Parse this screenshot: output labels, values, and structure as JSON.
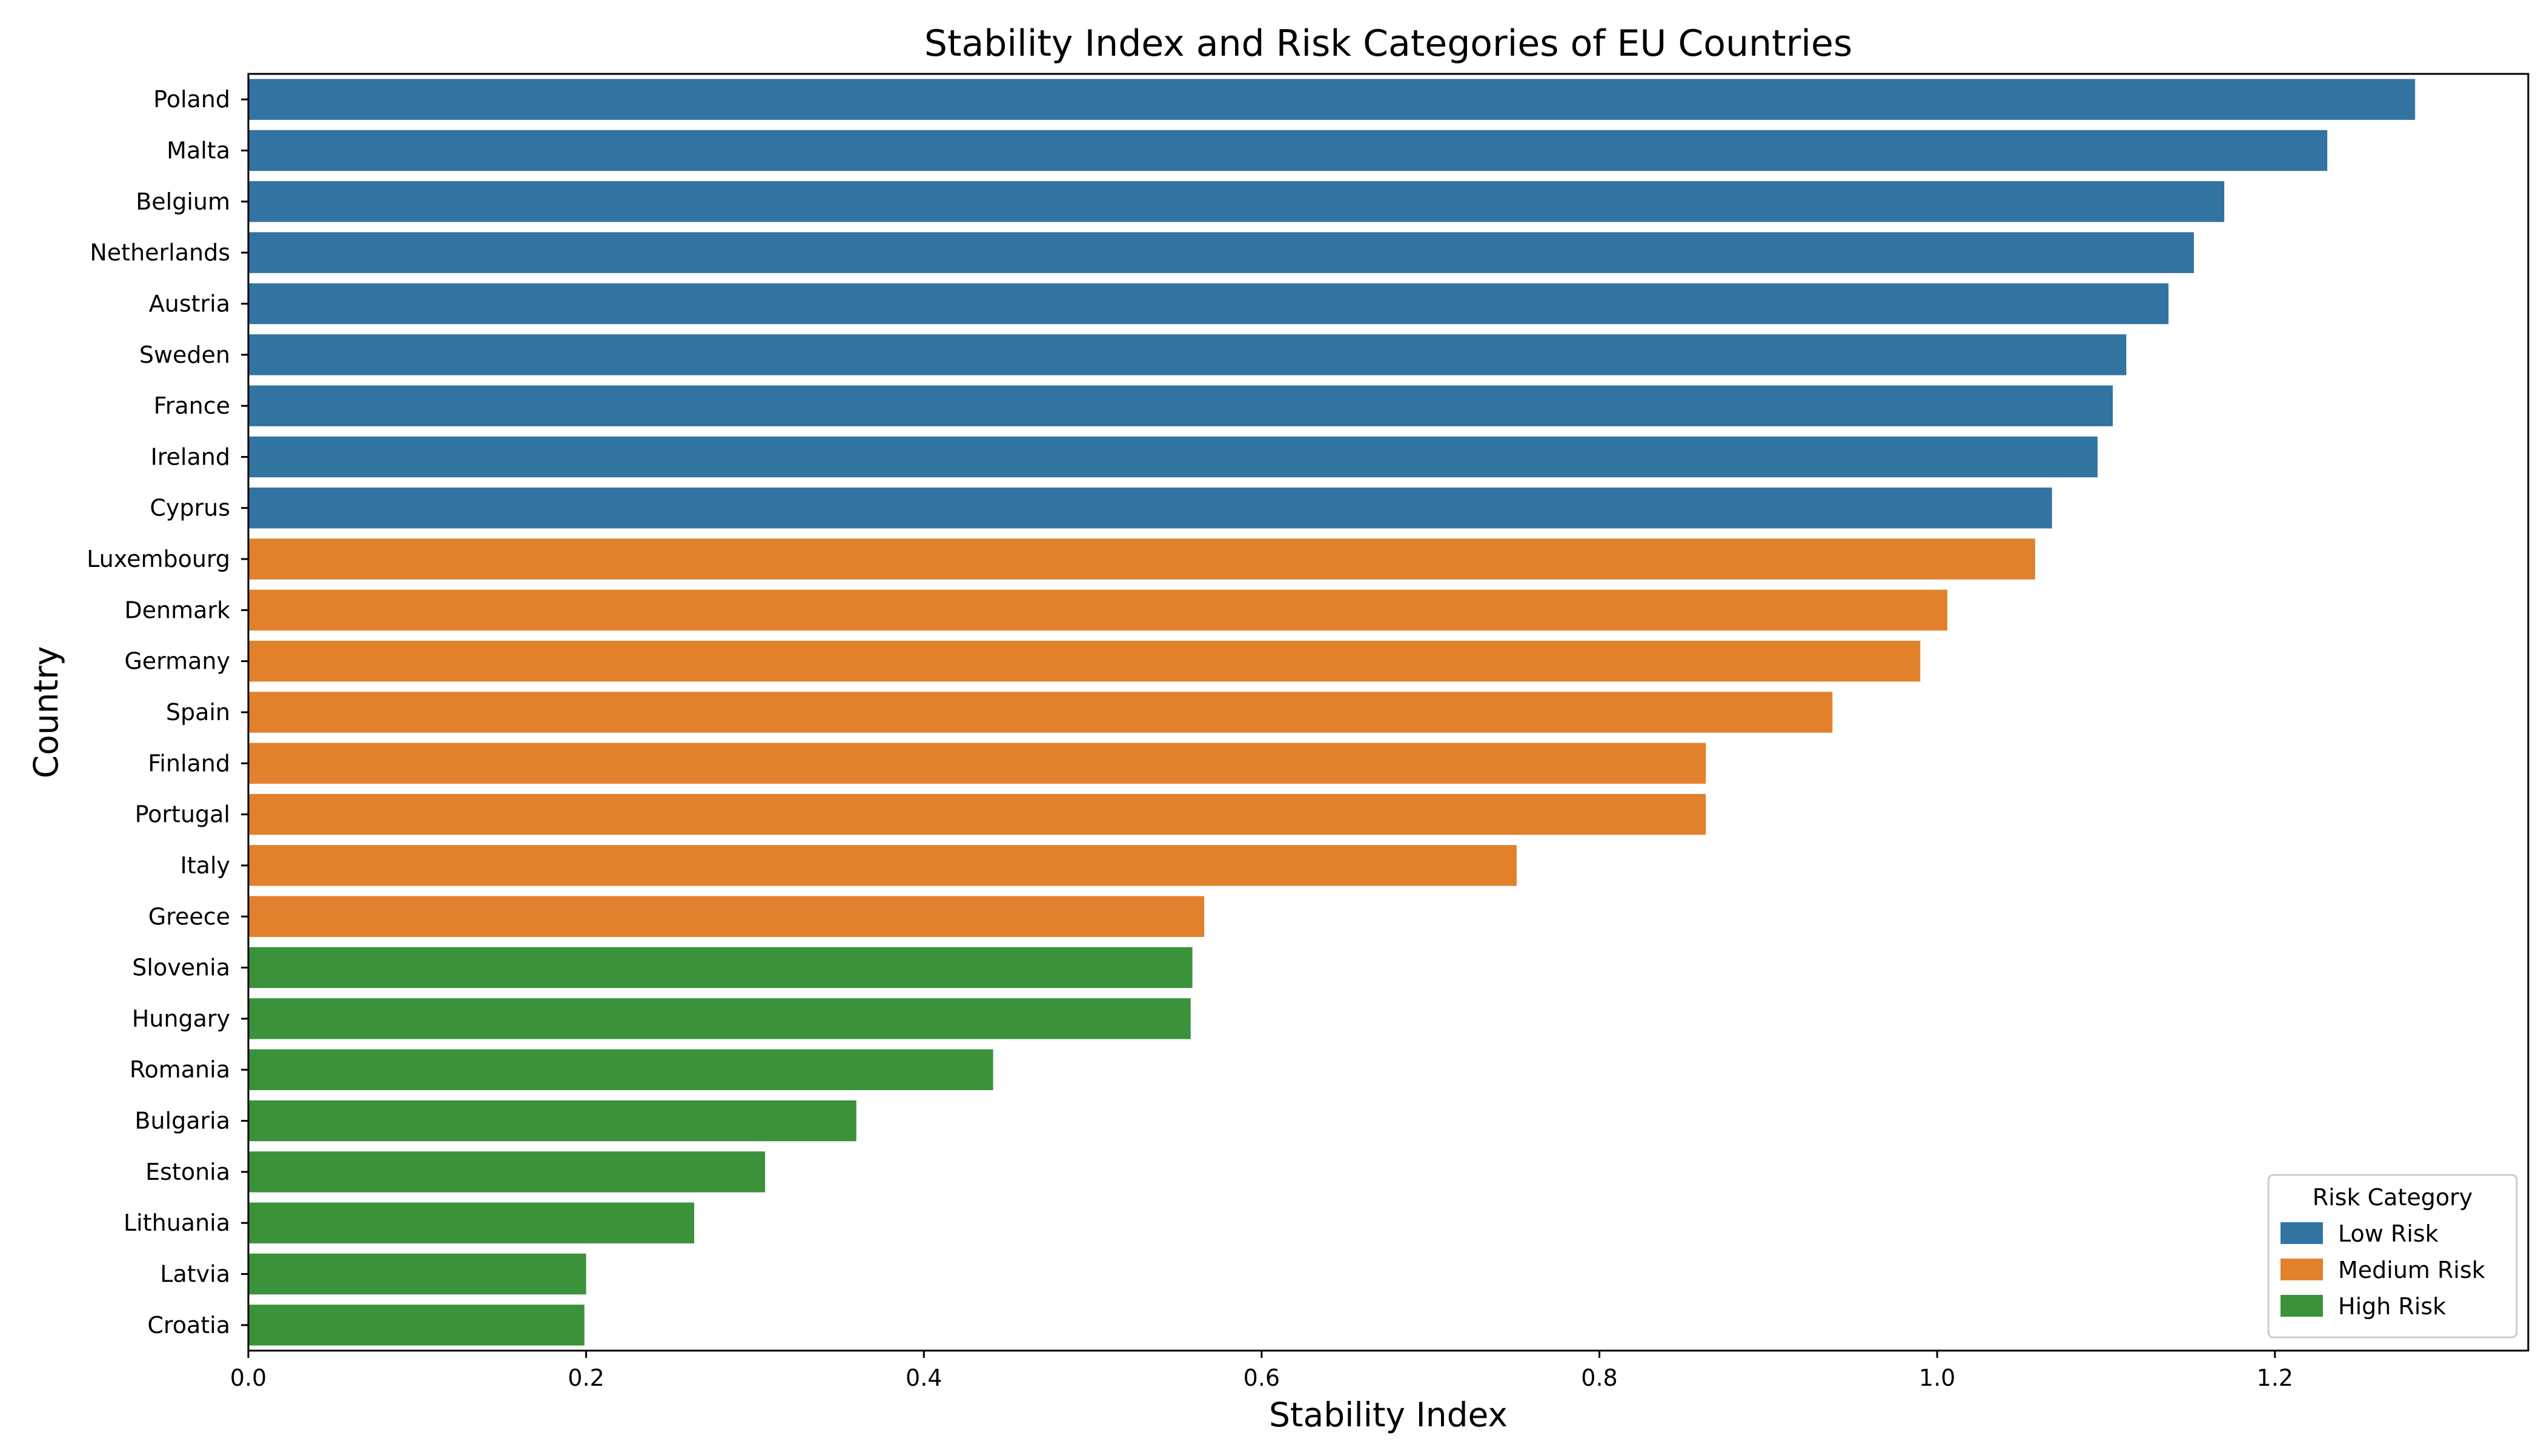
{
  "chart_data": {
    "type": "bar",
    "orientation": "horizontal",
    "title": "Stability Index and Risk Categories of EU Countries",
    "xlabel": "Stability Index",
    "ylabel": "Country",
    "xlim": [
      0.0,
      1.35
    ],
    "xticks": [
      0.0,
      0.2,
      0.4,
      0.6,
      0.8,
      1.0,
      1.2
    ],
    "xtick_labels": [
      "0.0",
      "0.2",
      "0.4",
      "0.6",
      "0.8",
      "1.0",
      "1.2"
    ],
    "grid": false,
    "legend": {
      "title": "Risk Category",
      "placement": "lower-right",
      "entries": [
        {
          "name": "Low Risk",
          "color": "#3274a1"
        },
        {
          "name": "Medium Risk",
          "color": "#e1812c"
        },
        {
          "name": "High Risk",
          "color": "#3a923a"
        }
      ]
    },
    "categories": [
      "Poland",
      "Malta",
      "Belgium",
      "Netherlands",
      "Austria",
      "Sweden",
      "France",
      "Ireland",
      "Cyprus",
      "Luxembourg",
      "Denmark",
      "Germany",
      "Spain",
      "Finland",
      "Portugal",
      "Italy",
      "Greece",
      "Slovenia",
      "Hungary",
      "Romania",
      "Bulgaria",
      "Estonia",
      "Lithuania",
      "Latvia",
      "Croatia"
    ],
    "values": [
      1.283,
      1.231,
      1.17,
      1.152,
      1.137,
      1.112,
      1.104,
      1.095,
      1.068,
      1.058,
      1.006,
      0.99,
      0.938,
      0.863,
      0.863,
      0.751,
      0.566,
      0.559,
      0.558,
      0.441,
      0.36,
      0.306,
      0.264,
      0.2,
      0.199
    ],
    "risk": [
      "Low Risk",
      "Low Risk",
      "Low Risk",
      "Low Risk",
      "Low Risk",
      "Low Risk",
      "Low Risk",
      "Low Risk",
      "Low Risk",
      "Medium Risk",
      "Medium Risk",
      "Medium Risk",
      "Medium Risk",
      "Medium Risk",
      "Medium Risk",
      "Medium Risk",
      "Medium Risk",
      "High Risk",
      "High Risk",
      "High Risk",
      "High Risk",
      "High Risk",
      "High Risk",
      "High Risk",
      "High Risk"
    ]
  }
}
